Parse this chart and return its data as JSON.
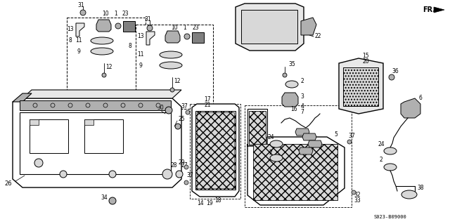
{
  "bg_color": "#ffffff",
  "line_color": "#000000",
  "diagram_code": "S023-B09000",
  "fr_label": "FR.",
  "fig_width": 6.4,
  "fig_height": 3.19,
  "dpi": 100,
  "gray_light": "#d8d8d8",
  "gray_mid": "#b0b0b0",
  "gray_dark": "#808080",
  "gray_fill": "#e8e8e8"
}
